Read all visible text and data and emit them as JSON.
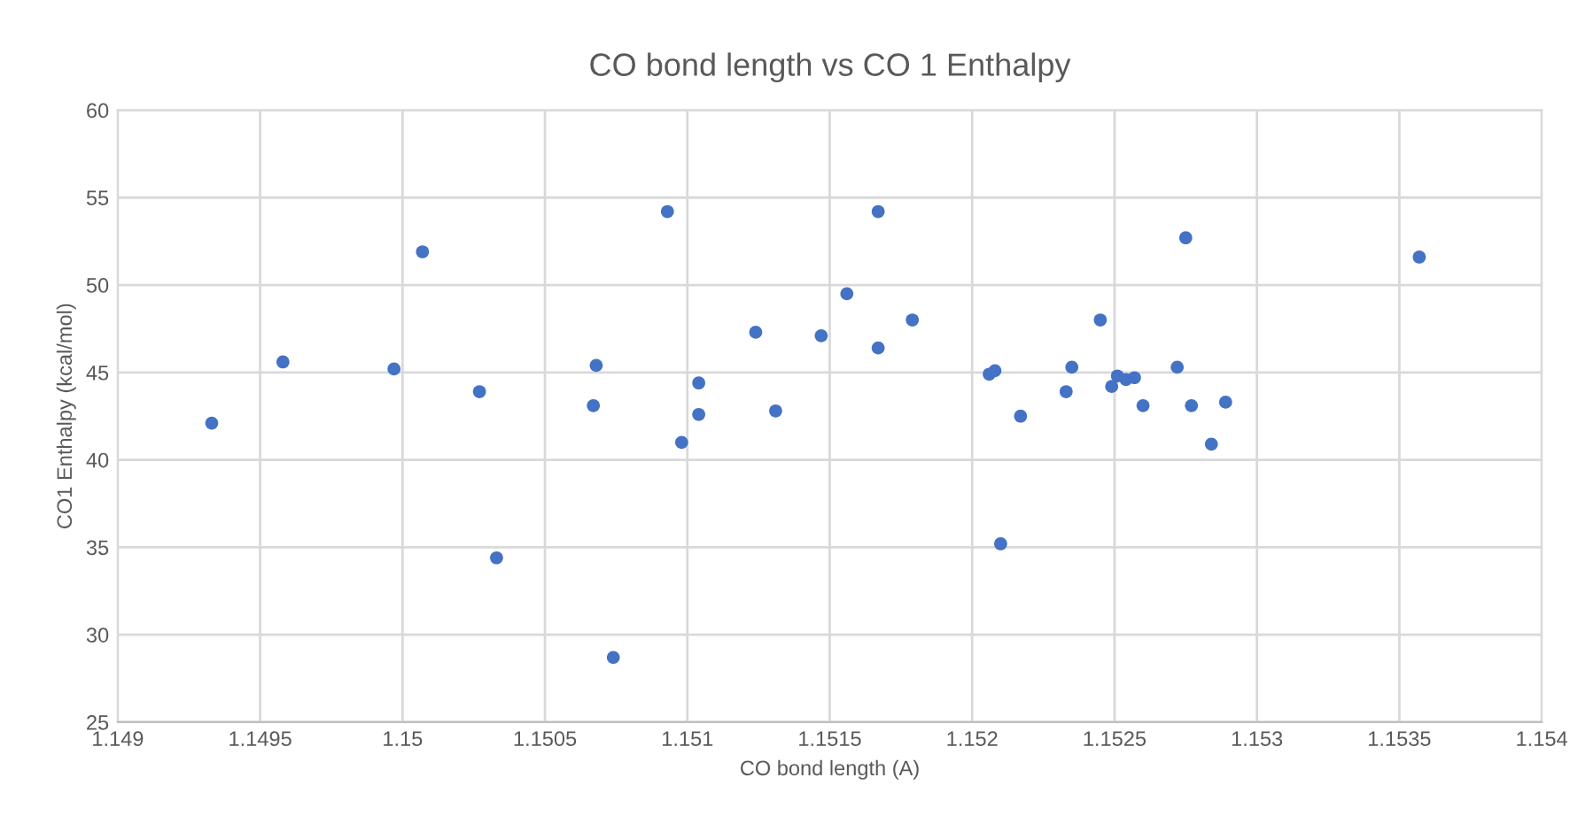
{
  "chart_data": {
    "type": "scatter",
    "title": "CO bond length vs CO 1 Enthalpy",
    "xlabel": "CO bond length (A)",
    "ylabel": "CO1 Enthalpy (kcal/mol)",
    "xlim": [
      1.149,
      1.154
    ],
    "xticks": [
      {
        "value": 1.149,
        "label": "1.149"
      },
      {
        "value": 1.1495,
        "label": "1.1495"
      },
      {
        "value": 1.15,
        "label": "1.15"
      },
      {
        "value": 1.1505,
        "label": "1.1505"
      },
      {
        "value": 1.151,
        "label": "1.151"
      },
      {
        "value": 1.1515,
        "label": "1.1515"
      },
      {
        "value": 1.152,
        "label": "1.152"
      },
      {
        "value": 1.1525,
        "label": "1.1525"
      },
      {
        "value": 1.153,
        "label": "1.153"
      },
      {
        "value": 1.1535,
        "label": "1.1535"
      },
      {
        "value": 1.154,
        "label": "1.154"
      }
    ],
    "ylim": [
      25,
      60
    ],
    "yticks": [
      25,
      30,
      35,
      40,
      45,
      50,
      55,
      60
    ],
    "grid": true,
    "marker": "circle",
    "series": [
      {
        "color": "#4472c4",
        "x": [
          1.14933,
          1.14958,
          1.14997,
          1.15007,
          1.15027,
          1.15033,
          1.15067,
          1.15068,
          1.15074,
          1.15093,
          1.15098,
          1.15104,
          1.15104,
          1.15124,
          1.15131,
          1.15147,
          1.15156,
          1.15167,
          1.15167,
          1.15179,
          1.15206,
          1.15208,
          1.1521,
          1.15217,
          1.15233,
          1.15235,
          1.15245,
          1.15249,
          1.15251,
          1.15254,
          1.15257,
          1.1526,
          1.15272,
          1.15275,
          1.15277,
          1.15284,
          1.15289,
          1.15357
        ],
        "values": [
          42.1,
          45.6,
          45.2,
          51.9,
          43.9,
          34.4,
          43.1,
          45.4,
          28.7,
          54.2,
          41.0,
          44.4,
          42.6,
          47.3,
          42.8,
          47.1,
          49.5,
          54.2,
          46.4,
          48.0,
          44.9,
          45.1,
          35.2,
          42.5,
          43.9,
          45.3,
          48.0,
          44.2,
          44.8,
          44.6,
          44.7,
          43.1,
          45.3,
          52.7,
          43.1,
          40.9,
          43.3,
          51.6
        ]
      }
    ]
  }
}
